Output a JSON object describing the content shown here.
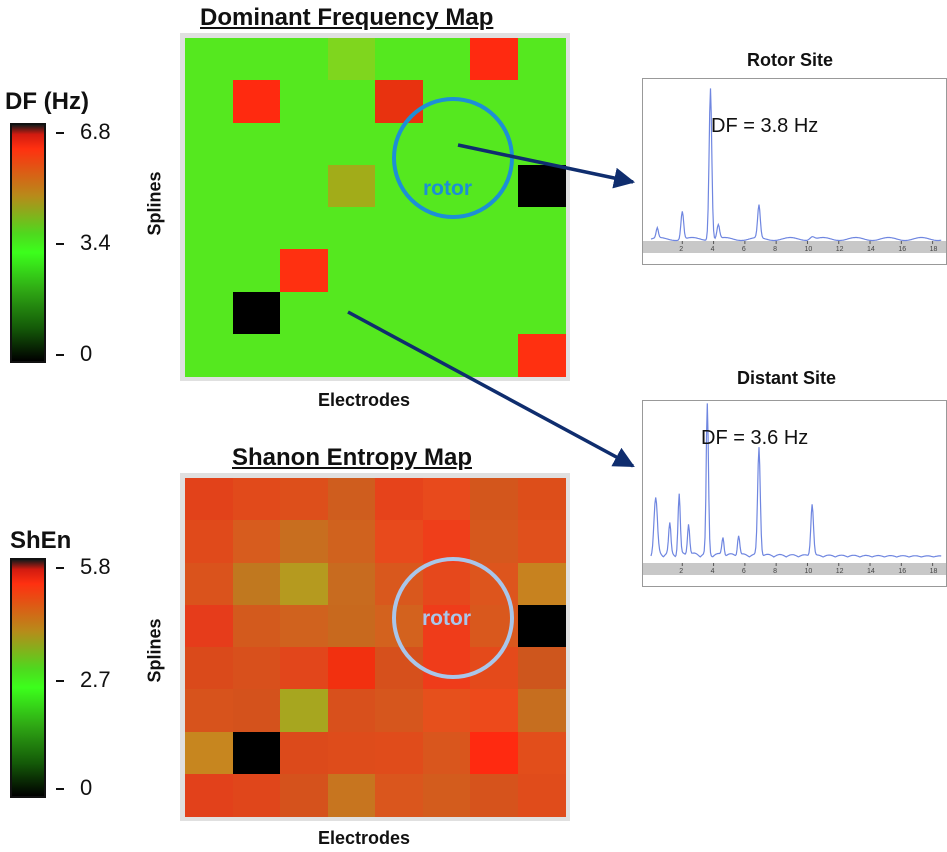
{
  "top_map": {
    "title": "Dominant Frequency Map",
    "xlabel": "Electrodes",
    "ylabel": "Splines",
    "rotor_label": "rotor",
    "base_color": "#55e81f",
    "special_cells": [
      {
        "row": 0,
        "col": 3,
        "color": "#7fd61e"
      },
      {
        "row": 0,
        "col": 6,
        "color": "#ff2a10"
      },
      {
        "row": 1,
        "col": 1,
        "color": "#ff2a0f"
      },
      {
        "row": 1,
        "col": 4,
        "color": "#e8320f"
      },
      {
        "row": 3,
        "col": 3,
        "color": "#a2ac19"
      },
      {
        "row": 3,
        "col": 7,
        "color": "#000000"
      },
      {
        "row": 5,
        "col": 2,
        "color": "#ff3010"
      },
      {
        "row": 6,
        "col": 1,
        "color": "#000000"
      },
      {
        "row": 7,
        "col": 7,
        "color": "#ff3010"
      }
    ]
  },
  "bottom_map": {
    "title": "Shanon Entropy Map",
    "xlabel": "Electrodes",
    "ylabel": "Splines",
    "rotor_label": "rotor",
    "grid": [
      [
        "#e2421a",
        "#e14a1b",
        "#dd4f1b",
        "#cf5d1e",
        "#e6431b",
        "#e84a1c",
        "#d3561c",
        "#dd4e1a"
      ],
      [
        "#e04a1b",
        "#d75c1e",
        "#c86e1f",
        "#d0621e",
        "#e84a1c",
        "#ef3e1a",
        "#d6581d",
        "#e0501c"
      ],
      [
        "#da531c",
        "#c0781f",
        "#b59a1f",
        "#c86b1f",
        "#d9581d",
        "#e6481c",
        "#dd551d",
        "#c7821f"
      ],
      [
        "#e63c1b",
        "#d35a1d",
        "#d0621e",
        "#c8691e",
        "#d3621e",
        "#ef3c1a",
        "#d9581d",
        "#000000"
      ],
      [
        "#da4a1b",
        "#d8501c",
        "#e2461b",
        "#f2300f",
        "#d6501c",
        "#ef3c1a",
        "#e44a1b",
        "#ce561d"
      ],
      [
        "#d7531c",
        "#d4521c",
        "#a7a61f",
        "#d8501c",
        "#d6561d",
        "#e6501c",
        "#ed4a1b",
        "#c66e1f"
      ],
      [
        "#c7861f",
        "#000000",
        "#dc4a1b",
        "#de4c1b",
        "#e04c1b",
        "#d9561d",
        "#ff2a10",
        "#e24e1b"
      ],
      [
        "#e2411b",
        "#e0461b",
        "#d5521c",
        "#c7751f",
        "#da561d",
        "#d35c1d",
        "#d6531c",
        "#e04c1b"
      ]
    ]
  },
  "df_colorbar": {
    "title": "DF (Hz)",
    "ticks": [
      "6.8",
      "3.4",
      "0"
    ]
  },
  "shen_colorbar": {
    "title": "ShEn",
    "ticks": [
      "5.8",
      "2.7",
      "0"
    ]
  },
  "rotor_site": {
    "title": "Rotor Site",
    "label": "DF = 3.8 Hz",
    "x_ticks": [
      "2",
      "4",
      "6",
      "8",
      "10",
      "12",
      "14",
      "16",
      "18"
    ]
  },
  "distant_site": {
    "title": "Distant Site",
    "label": "DF = 3.6 Hz",
    "x_ticks": [
      "2",
      "4",
      "6",
      "8",
      "10",
      "12",
      "14",
      "16",
      "18"
    ]
  },
  "colors": {
    "rotor_circle_top": "#1d8fd6",
    "rotor_circle_bottom": "#a9c6ea",
    "arrow": "#0f2d6e",
    "spectrum_line": "#6f86e0"
  }
}
